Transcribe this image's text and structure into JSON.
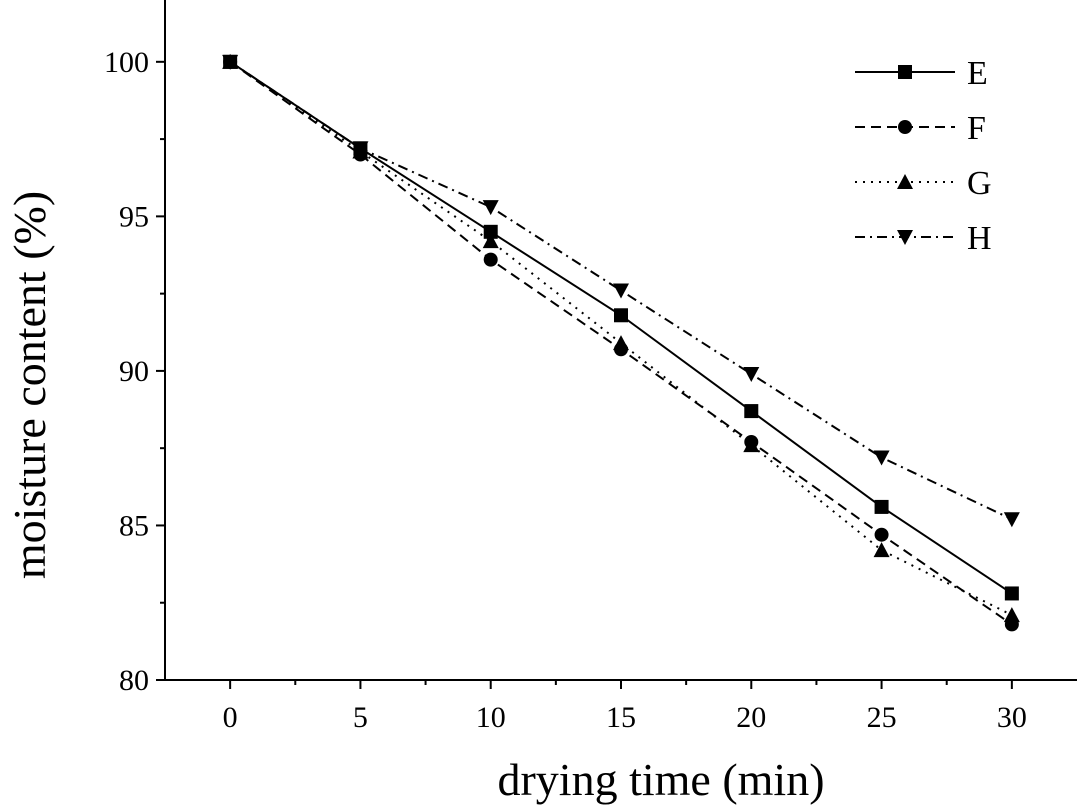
{
  "chart_data": {
    "type": "line",
    "title": "",
    "xlabel": "drying time (min)",
    "ylabel": "moisture content (%)",
    "x": [
      0,
      5,
      10,
      15,
      20,
      25,
      30
    ],
    "xlim": [
      -2.5,
      32.5
    ],
    "ylim": [
      80,
      102
    ],
    "xticks": [
      "0",
      "5",
      "10",
      "15",
      "20",
      "25",
      "30"
    ],
    "yticks": [
      "80",
      "85",
      "90",
      "95",
      "100"
    ],
    "legend_position": "top-right",
    "grid": false,
    "series": [
      {
        "name": "E",
        "marker": "square",
        "linestyle": "solid",
        "values": [
          100,
          97.2,
          94.5,
          91.8,
          88.7,
          85.6,
          82.8
        ]
      },
      {
        "name": "F",
        "marker": "circle",
        "linestyle": "dashed",
        "values": [
          100,
          97.0,
          93.6,
          90.7,
          87.7,
          84.7,
          81.8
        ]
      },
      {
        "name": "G",
        "marker": "triangle-up",
        "linestyle": "dotted",
        "values": [
          100,
          97.1,
          94.2,
          90.9,
          87.6,
          84.2,
          82.1
        ]
      },
      {
        "name": "H",
        "marker": "triangle-down",
        "linestyle": "dashdot",
        "values": [
          100,
          97.2,
          95.3,
          92.6,
          89.9,
          87.2,
          85.2
        ]
      }
    ]
  }
}
